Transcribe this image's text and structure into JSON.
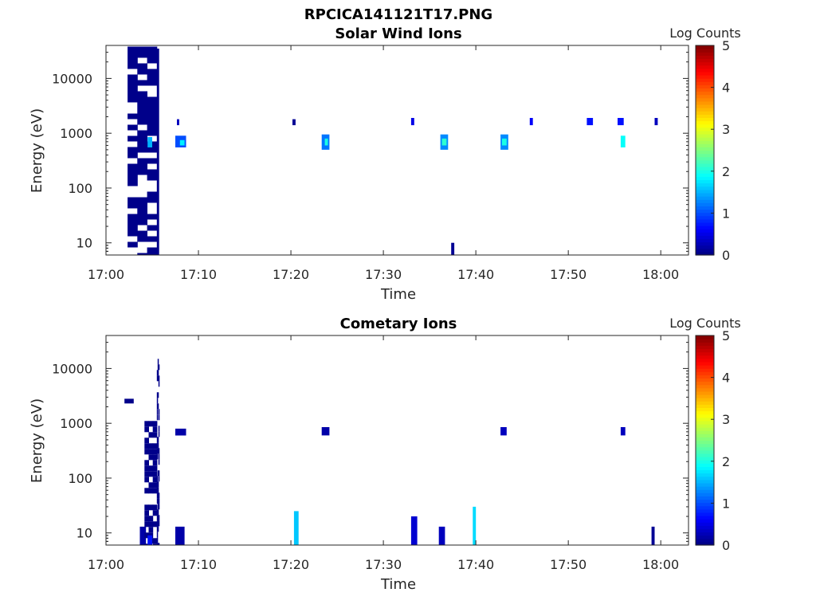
{
  "figure_title": "RPCICA141121T17.PNG",
  "chart_data": [
    {
      "type": "heatmap",
      "title": "Solar Wind Ions",
      "xlabel": "Time",
      "ylabel": "Energy (eV)",
      "colorbar_label": "Log Counts",
      "xlim": [
        "17:00",
        "18:03"
      ],
      "x_ticks": [
        "17:00",
        "17:10",
        "17:20",
        "17:30",
        "17:40",
        "17:50",
        "18:00"
      ],
      "ylim": [
        6,
        40000
      ],
      "yscale": "log",
      "y_ticks": [
        10,
        100,
        1000,
        10000
      ],
      "y_tick_labels": [
        "10",
        "100",
        "1000",
        "10000"
      ],
      "clim": [
        0,
        5
      ],
      "colorbar_ticks": [
        "0",
        "1",
        "2",
        "3",
        "4",
        "5"
      ],
      "colormap": "jet",
      "cells": [
        {
          "t": "17:02:20",
          "t2": "17:05:30",
          "e1": 6,
          "e2": 38000,
          "v": 0.05,
          "pattern": "sparse"
        },
        {
          "t": "17:05:30",
          "t2": "17:05:45",
          "e1": 6,
          "e2": 35000,
          "v": 0.05
        },
        {
          "t": "17:04:30",
          "t2": "17:05:00",
          "e1": 550,
          "e2": 850,
          "v": 1.5
        },
        {
          "t": "17:07:30",
          "t2": "17:08:40",
          "e1": 550,
          "e2": 900,
          "v": 1.0
        },
        {
          "t": "17:08:00",
          "t2": "17:08:30",
          "e1": 600,
          "e2": 750,
          "v": 1.8
        },
        {
          "t": "17:07:40",
          "t2": "17:07:55",
          "e1": 1400,
          "e2": 1800,
          "v": 0.3
        },
        {
          "t": "17:20:10",
          "t2": "17:20:30",
          "e1": 1400,
          "e2": 1800,
          "v": 0.1
        },
        {
          "t": "17:23:20",
          "t2": "17:24:10",
          "e1": 500,
          "e2": 950,
          "v": 1.2
        },
        {
          "t": "17:23:40",
          "t2": "17:24:00",
          "e1": 600,
          "e2": 800,
          "v": 2.0
        },
        {
          "t": "17:33:00",
          "t2": "17:33:20",
          "e1": 1400,
          "e2": 1900,
          "v": 0.5
        },
        {
          "t": "17:36:10",
          "t2": "17:37:00",
          "e1": 500,
          "e2": 950,
          "v": 1.3
        },
        {
          "t": "17:36:20",
          "t2": "17:36:50",
          "e1": 600,
          "e2": 800,
          "v": 2.1
        },
        {
          "t": "17:42:40",
          "t2": "17:43:30",
          "e1": 500,
          "e2": 950,
          "v": 1.3
        },
        {
          "t": "17:42:50",
          "t2": "17:43:20",
          "e1": 600,
          "e2": 800,
          "v": 2.0
        },
        {
          "t": "17:45:50",
          "t2": "17:46:10",
          "e1": 1400,
          "e2": 1900,
          "v": 0.6
        },
        {
          "t": "17:52:00",
          "t2": "17:52:40",
          "e1": 1400,
          "e2": 1900,
          "v": 0.7
        },
        {
          "t": "17:55:20",
          "t2": "17:56:00",
          "e1": 1400,
          "e2": 1900,
          "v": 0.7
        },
        {
          "t": "17:55:40",
          "t2": "17:56:10",
          "e1": 550,
          "e2": 900,
          "v": 1.9
        },
        {
          "t": "17:59:20",
          "t2": "17:59:40",
          "e1": 1400,
          "e2": 1900,
          "v": 0.3
        },
        {
          "t": "17:37:20",
          "t2": "17:37:40",
          "e1": 6,
          "e2": 10,
          "v": 0.1
        }
      ]
    },
    {
      "type": "heatmap",
      "title": "Cometary Ions",
      "xlabel": "Time",
      "ylabel": "Energy (eV)",
      "colorbar_label": "Log Counts",
      "xlim": [
        "17:00",
        "18:03"
      ],
      "x_ticks": [
        "17:00",
        "17:10",
        "17:20",
        "17:30",
        "17:40",
        "17:50",
        "18:00"
      ],
      "ylim": [
        6,
        40000
      ],
      "yscale": "log",
      "y_ticks": [
        10,
        100,
        1000,
        10000
      ],
      "y_tick_labels": [
        "10",
        "100",
        "1000",
        "10000"
      ],
      "clim": [
        0,
        5
      ],
      "colorbar_ticks": [
        "0",
        "1",
        "2",
        "3",
        "4",
        "5"
      ],
      "colormap": "jet",
      "cells": [
        {
          "t": "17:02:00",
          "t2": "17:03:00",
          "e1": 2300,
          "e2": 2800,
          "v": 0.05
        },
        {
          "t": "17:03:40",
          "t2": "17:04:20",
          "e1": 6,
          "e2": 13,
          "v": 0.2
        },
        {
          "t": "17:04:10",
          "t2": "17:05:30",
          "e1": 6,
          "e2": 1100,
          "v": 0.05,
          "pattern": "sparse"
        },
        {
          "t": "17:04:30",
          "t2": "17:05:00",
          "e1": 6,
          "e2": 9,
          "v": 0.7
        },
        {
          "t": "17:05:30",
          "t2": "17:05:45",
          "e1": 6,
          "e2": 15000,
          "v": 0.05,
          "pattern": "sparse"
        },
        {
          "t": "17:07:30",
          "t2": "17:08:40",
          "e1": 600,
          "e2": 800,
          "v": 0.2
        },
        {
          "t": "17:07:30",
          "t2": "17:08:30",
          "e1": 6,
          "e2": 13,
          "v": 0.2
        },
        {
          "t": "17:20:20",
          "t2": "17:20:50",
          "e1": 6,
          "e2": 25,
          "v": 1.6
        },
        {
          "t": "17:23:20",
          "t2": "17:24:10",
          "e1": 600,
          "e2": 850,
          "v": 0.2
        },
        {
          "t": "17:33:00",
          "t2": "17:33:40",
          "e1": 6,
          "e2": 20,
          "v": 0.4
        },
        {
          "t": "17:36:00",
          "t2": "17:36:40",
          "e1": 6,
          "e2": 13,
          "v": 0.3
        },
        {
          "t": "17:39:40",
          "t2": "17:40:00",
          "e1": 6,
          "e2": 30,
          "v": 1.7
        },
        {
          "t": "17:42:40",
          "t2": "17:43:20",
          "e1": 600,
          "e2": 850,
          "v": 0.3
        },
        {
          "t": "17:55:40",
          "t2": "17:56:10",
          "e1": 600,
          "e2": 850,
          "v": 0.3
        },
        {
          "t": "17:59:00",
          "t2": "17:59:20",
          "e1": 6,
          "e2": 13,
          "v": 0.1
        }
      ]
    }
  ]
}
